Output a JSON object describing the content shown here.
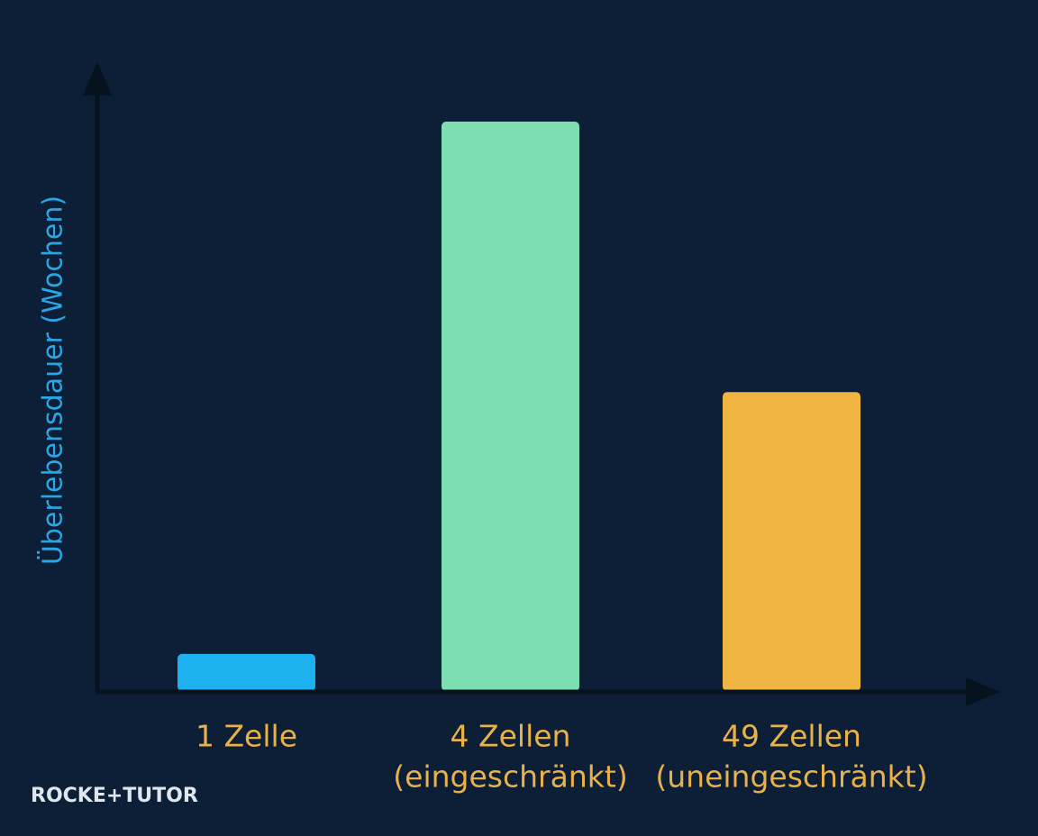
{
  "chart_data": {
    "type": "bar",
    "y_label": "Überlebensdauer (Wochen)",
    "categories": [
      [
        "1 Zelle"
      ],
      [
        "4 Zellen",
        "(eingeschränkt)"
      ],
      [
        "49 Zellen",
        "(uneingeschränkt)"
      ]
    ],
    "values": [
      6.5,
      100,
      52.5
    ],
    "colors": [
      "#1db2ef",
      "#7ddfb1",
      "#f0b443"
    ],
    "ylim": [
      0,
      100
    ]
  },
  "logo": "ROCKE+TUTOR"
}
